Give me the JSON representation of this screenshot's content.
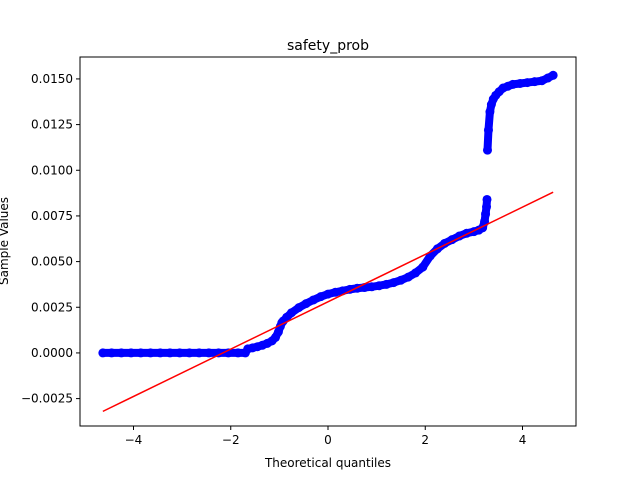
{
  "chart_data": {
    "type": "scatter",
    "title": "safety_prob",
    "xlabel": "Theoretical quantiles",
    "ylabel": "Sample Values",
    "xlim": [
      -5.1,
      5.1
    ],
    "ylim": [
      -0.004,
      0.0162
    ],
    "x_ticks": [
      {
        "value": -4,
        "label": "−4"
      },
      {
        "value": -2,
        "label": "−2"
      },
      {
        "value": 0,
        "label": "0"
      },
      {
        "value": 2,
        "label": "2"
      },
      {
        "value": 4,
        "label": "4"
      }
    ],
    "y_ticks": [
      {
        "value": -0.0025,
        "label": "−0.0025"
      },
      {
        "value": 0.0,
        "label": "0.0000"
      },
      {
        "value": 0.0025,
        "label": "0.0025"
      },
      {
        "value": 0.005,
        "label": "0.0050"
      },
      {
        "value": 0.0075,
        "label": "0.0075"
      },
      {
        "value": 0.01,
        "label": "0.0100"
      },
      {
        "value": 0.0125,
        "label": "0.0125"
      },
      {
        "value": 0.015,
        "label": "0.0150"
      }
    ],
    "grid": false,
    "series": [
      {
        "kind": "points",
        "color": "#0000ff",
        "x": [
          -4.63,
          -4.45,
          -4.25,
          -4.05,
          -3.85,
          -3.65,
          -3.45,
          -3.25,
          -3.05,
          -2.85,
          -2.65,
          -2.45,
          -2.25,
          -2.05,
          -1.85,
          -1.7,
          -1.65,
          -1.55,
          -1.45,
          -1.35,
          -1.25,
          -1.15,
          -1.08,
          -1.02,
          -0.98,
          -0.95,
          -0.92,
          -0.85,
          -0.75,
          -0.6,
          -0.45,
          -0.3,
          -0.15,
          0.0,
          0.15,
          0.3,
          0.45,
          0.6,
          0.75,
          0.9,
          1.05,
          1.2,
          1.35,
          1.5,
          1.65,
          1.8,
          1.95,
          2.1,
          2.25,
          2.4,
          2.55,
          2.7,
          2.85,
          3.0,
          3.1,
          3.18,
          3.22,
          3.24,
          3.26,
          3.27,
          3.28,
          3.3,
          3.33,
          3.36,
          3.4,
          3.45,
          3.52,
          3.6,
          3.7,
          3.8,
          3.95,
          4.1,
          4.25,
          4.4,
          4.52,
          4.63
        ],
        "y": [
          0.0,
          0.0,
          0.0,
          0.0,
          0.0,
          0.0,
          0.0,
          0.0,
          0.0,
          0.0,
          0.0,
          0.0,
          0.0,
          0.0,
          0.0,
          0.0,
          0.00022,
          0.00028,
          0.00034,
          0.00042,
          0.00052,
          0.00066,
          0.00085,
          0.00115,
          0.00145,
          0.00165,
          0.00175,
          0.00195,
          0.0022,
          0.00248,
          0.0027,
          0.0029,
          0.00308,
          0.00322,
          0.00332,
          0.0034,
          0.00348,
          0.00354,
          0.00358,
          0.00362,
          0.00368,
          0.00375,
          0.00385,
          0.00398,
          0.00415,
          0.00438,
          0.0047,
          0.0053,
          0.0057,
          0.006,
          0.0062,
          0.0064,
          0.00655,
          0.00664,
          0.00672,
          0.00685,
          0.0072,
          0.0076,
          0.008,
          0.0084,
          0.0111,
          0.0122,
          0.0132,
          0.0136,
          0.0139,
          0.0141,
          0.0143,
          0.0145,
          0.0146,
          0.0147,
          0.01475,
          0.0148,
          0.01485,
          0.0149,
          0.01505,
          0.0152
        ]
      },
      {
        "kind": "line",
        "color": "#ff0000",
        "x": [
          -4.63,
          4.63
        ],
        "y": [
          -0.0032,
          0.0088
        ]
      }
    ]
  }
}
